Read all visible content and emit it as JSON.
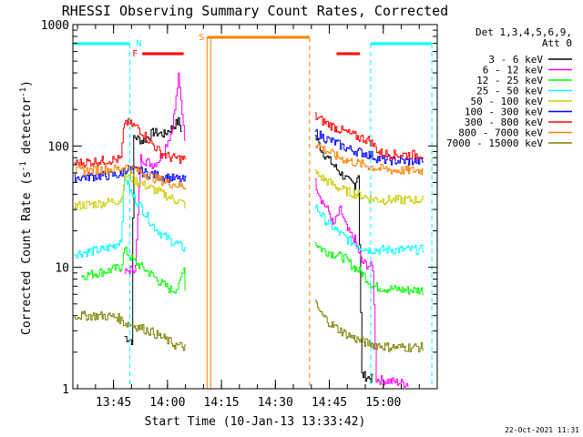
{
  "chart_data": {
    "type": "line",
    "title": "RHESSI Observing Summary Count Rates, Corrected",
    "xlabel": "Start Time (10-Jan-13 13:33:42)",
    "ylabel": "Corrected Count Rate (s⁻¹ detector⁻¹)",
    "ylabel_main": "Corrected Count Rate (s",
    "ylabel_sup1": "-1",
    "ylabel_mid": " detector",
    "ylabel_sup2": "-1",
    "ylabel_end": ")",
    "footer": "22-Oct-2021 11:31",
    "x_ticks": [
      "13:45",
      "14:00",
      "14:15",
      "14:30",
      "14:45",
      "15:00"
    ],
    "x_tick_minutes": [
      45,
      60,
      75,
      90,
      105,
      120
    ],
    "xlim_minutes": [
      33.7,
      135.0
    ],
    "y_scale": "log",
    "ylim": [
      1,
      1000
    ],
    "y_ticks": [
      "1",
      "10",
      "100",
      "1000"
    ],
    "legend_header": [
      "Det 1,3,4,5,6,9,",
      "Att 0"
    ],
    "legend_position": "right",
    "series": [
      {
        "name": "3 - 6 keV",
        "color": "#000000",
        "seg1": [
          [
            48,
            2.7
          ],
          [
            50,
            2.5
          ],
          [
            50.6,
            120
          ],
          [
            53,
            110
          ],
          [
            56,
            130
          ],
          [
            59,
            125
          ],
          [
            61,
            140
          ],
          [
            62,
            150
          ],
          [
            63,
            160
          ],
          [
            64,
            130
          ]
        ],
        "seg2": [
          [
            101,
            120
          ],
          [
            103,
            90
          ],
          [
            106,
            70
          ],
          [
            108,
            60
          ],
          [
            110,
            52
          ],
          [
            112,
            48
          ],
          [
            113,
            60
          ],
          [
            114,
            1.3
          ],
          [
            117,
            1.2
          ]
        ]
      },
      {
        "name": "6 - 12 keV",
        "color": "#ff00ff",
        "seg1": [
          [
            48,
            9
          ],
          [
            49.5,
            9.5
          ],
          [
            51,
            10
          ],
          [
            52.5,
            80
          ],
          [
            54,
            75
          ],
          [
            56,
            70
          ],
          [
            58,
            80
          ],
          [
            61,
            130
          ],
          [
            62,
            200
          ],
          [
            63,
            370
          ],
          [
            64,
            190
          ],
          [
            65,
            100
          ]
        ],
        "seg2": [
          [
            101,
            50
          ],
          [
            103,
            35
          ],
          [
            105,
            28
          ],
          [
            106,
            22
          ],
          [
            108,
            30
          ],
          [
            110,
            20
          ],
          [
            112,
            17
          ],
          [
            114,
            11
          ],
          [
            117,
            10
          ],
          [
            118,
            1.2
          ],
          [
            127,
            1.1
          ]
        ]
      },
      {
        "name": "12 - 25 keV",
        "color": "#00ff00",
        "seg1": [
          [
            36,
            8.5
          ],
          [
            40,
            9
          ],
          [
            44,
            9.5
          ],
          [
            47,
            10
          ],
          [
            48,
            14
          ],
          [
            51,
            11
          ],
          [
            55,
            9
          ],
          [
            58,
            7.5
          ],
          [
            61,
            6.5
          ],
          [
            63,
            6.8
          ],
          [
            64.5,
            10
          ],
          [
            65,
            6
          ]
        ],
        "seg2": [
          [
            101,
            16
          ],
          [
            103,
            14
          ],
          [
            106,
            13
          ],
          [
            109,
            12
          ],
          [
            112,
            10
          ],
          [
            114,
            9
          ],
          [
            117,
            7
          ],
          [
            121,
            6.7
          ],
          [
            126,
            6.5
          ],
          [
            131,
            6.5
          ]
        ]
      },
      {
        "name": "25 - 50 keV",
        "color": "#00ffff",
        "seg1": [
          [
            34,
            13
          ],
          [
            38,
            13.5
          ],
          [
            42,
            14
          ],
          [
            45,
            15
          ],
          [
            47,
            17
          ],
          [
            48,
            58
          ],
          [
            50,
            40
          ],
          [
            53,
            30
          ],
          [
            56,
            22
          ],
          [
            59,
            18
          ],
          [
            62,
            16
          ],
          [
            65,
            14
          ]
        ],
        "seg2": [
          [
            101,
            32
          ],
          [
            104,
            24
          ],
          [
            107,
            20
          ],
          [
            110,
            17
          ],
          [
            113,
            15
          ],
          [
            116,
            14
          ],
          [
            120,
            14
          ],
          [
            125,
            14
          ],
          [
            131,
            14
          ]
        ]
      },
      {
        "name": "50 - 100 keV",
        "color": "#cccc00",
        "seg1": [
          [
            34,
            32
          ],
          [
            38,
            33
          ],
          [
            42,
            34
          ],
          [
            47,
            36
          ],
          [
            48,
            58
          ],
          [
            52,
            50
          ],
          [
            56,
            44
          ],
          [
            59,
            40
          ],
          [
            62,
            36
          ],
          [
            65,
            33
          ]
        ],
        "seg2": [
          [
            101,
            60
          ],
          [
            104,
            52
          ],
          [
            107,
            46
          ],
          [
            110,
            42
          ],
          [
            113,
            40
          ],
          [
            116,
            37
          ],
          [
            120,
            36
          ],
          [
            125,
            36
          ],
          [
            131,
            36
          ]
        ]
      },
      {
        "name": "100 - 300 keV",
        "color": "#0000ff",
        "seg1": [
          [
            34,
            55
          ],
          [
            38,
            56
          ],
          [
            42,
            57
          ],
          [
            47,
            58
          ],
          [
            48,
            65
          ],
          [
            52,
            62
          ],
          [
            56,
            58
          ],
          [
            60,
            55
          ],
          [
            65,
            52
          ]
        ],
        "seg2": [
          [
            101,
            130
          ],
          [
            104,
            115
          ],
          [
            107,
            105
          ],
          [
            110,
            95
          ],
          [
            113,
            90
          ],
          [
            116,
            85
          ],
          [
            119,
            78
          ],
          [
            123,
            76
          ],
          [
            127,
            75
          ],
          [
            131,
            75
          ]
        ]
      },
      {
        "name": "300 - 800 keV",
        "color": "#ff0000",
        "seg1": [
          [
            34,
            72
          ],
          [
            38,
            74
          ],
          [
            42,
            76
          ],
          [
            47,
            78
          ],
          [
            48,
            160
          ],
          [
            52,
            140
          ],
          [
            55,
            110
          ],
          [
            58,
            88
          ],
          [
            61,
            80
          ],
          [
            65,
            78
          ]
        ],
        "seg2": [
          [
            101,
            175
          ],
          [
            104,
            155
          ],
          [
            107,
            140
          ],
          [
            110,
            128
          ],
          [
            113,
            118
          ],
          [
            116,
            112
          ],
          [
            119,
            88
          ],
          [
            123,
            85
          ],
          [
            127,
            85
          ],
          [
            131,
            85
          ]
        ]
      },
      {
        "name": "800 - 7000 keV",
        "color": "#ff8000",
        "seg1": [
          [
            34,
            62
          ],
          [
            38,
            63
          ],
          [
            42,
            64
          ],
          [
            47,
            65
          ],
          [
            48,
            68
          ],
          [
            52,
            62
          ],
          [
            56,
            55
          ],
          [
            60,
            50
          ],
          [
            65,
            46
          ]
        ],
        "seg2": [
          [
            101,
            105
          ],
          [
            104,
            92
          ],
          [
            107,
            82
          ],
          [
            110,
            76
          ],
          [
            113,
            72
          ],
          [
            116,
            68
          ],
          [
            119,
            65
          ],
          [
            123,
            63
          ],
          [
            127,
            63
          ],
          [
            131,
            63
          ]
        ]
      },
      {
        "name": "7000 - 15000 keV",
        "color": "#808000",
        "seg1": [
          [
            34,
            4
          ],
          [
            38,
            4
          ],
          [
            42,
            4
          ],
          [
            46,
            3.9
          ],
          [
            48,
            3.5
          ],
          [
            51,
            3.3
          ],
          [
            55,
            3
          ],
          [
            59,
            2.6
          ],
          [
            62,
            2.3
          ],
          [
            65,
            2.2
          ]
        ],
        "seg2": [
          [
            101,
            5
          ],
          [
            103,
            4
          ],
          [
            106,
            3.3
          ],
          [
            109,
            2.9
          ],
          [
            112,
            2.6
          ],
          [
            115,
            2.4
          ],
          [
            118,
            2.3
          ],
          [
            122,
            2.2
          ],
          [
            126,
            2.2
          ],
          [
            131,
            2.2
          ]
        ]
      }
    ],
    "markers": [
      {
        "label": "N",
        "color": "#00ffff",
        "top_from": 33.7,
        "top_to": 49.5,
        "vline": 49.5
      },
      {
        "label": "",
        "color": "#00ffff",
        "top_from": 116.5,
        "top_to": 133.5,
        "vline": 116.5,
        "vline2": 133.5
      },
      {
        "label": "F",
        "color": "#ff0000",
        "top_from": 53,
        "top_to": 64.5
      },
      {
        "label": "",
        "color": "#ff0000",
        "top_from": 107,
        "top_to": 113.5
      },
      {
        "label": "S",
        "color": "#ff8000",
        "top_from": 71,
        "top_to": 99.5,
        "vline": 71,
        "vline2": 99.5
      }
    ]
  }
}
